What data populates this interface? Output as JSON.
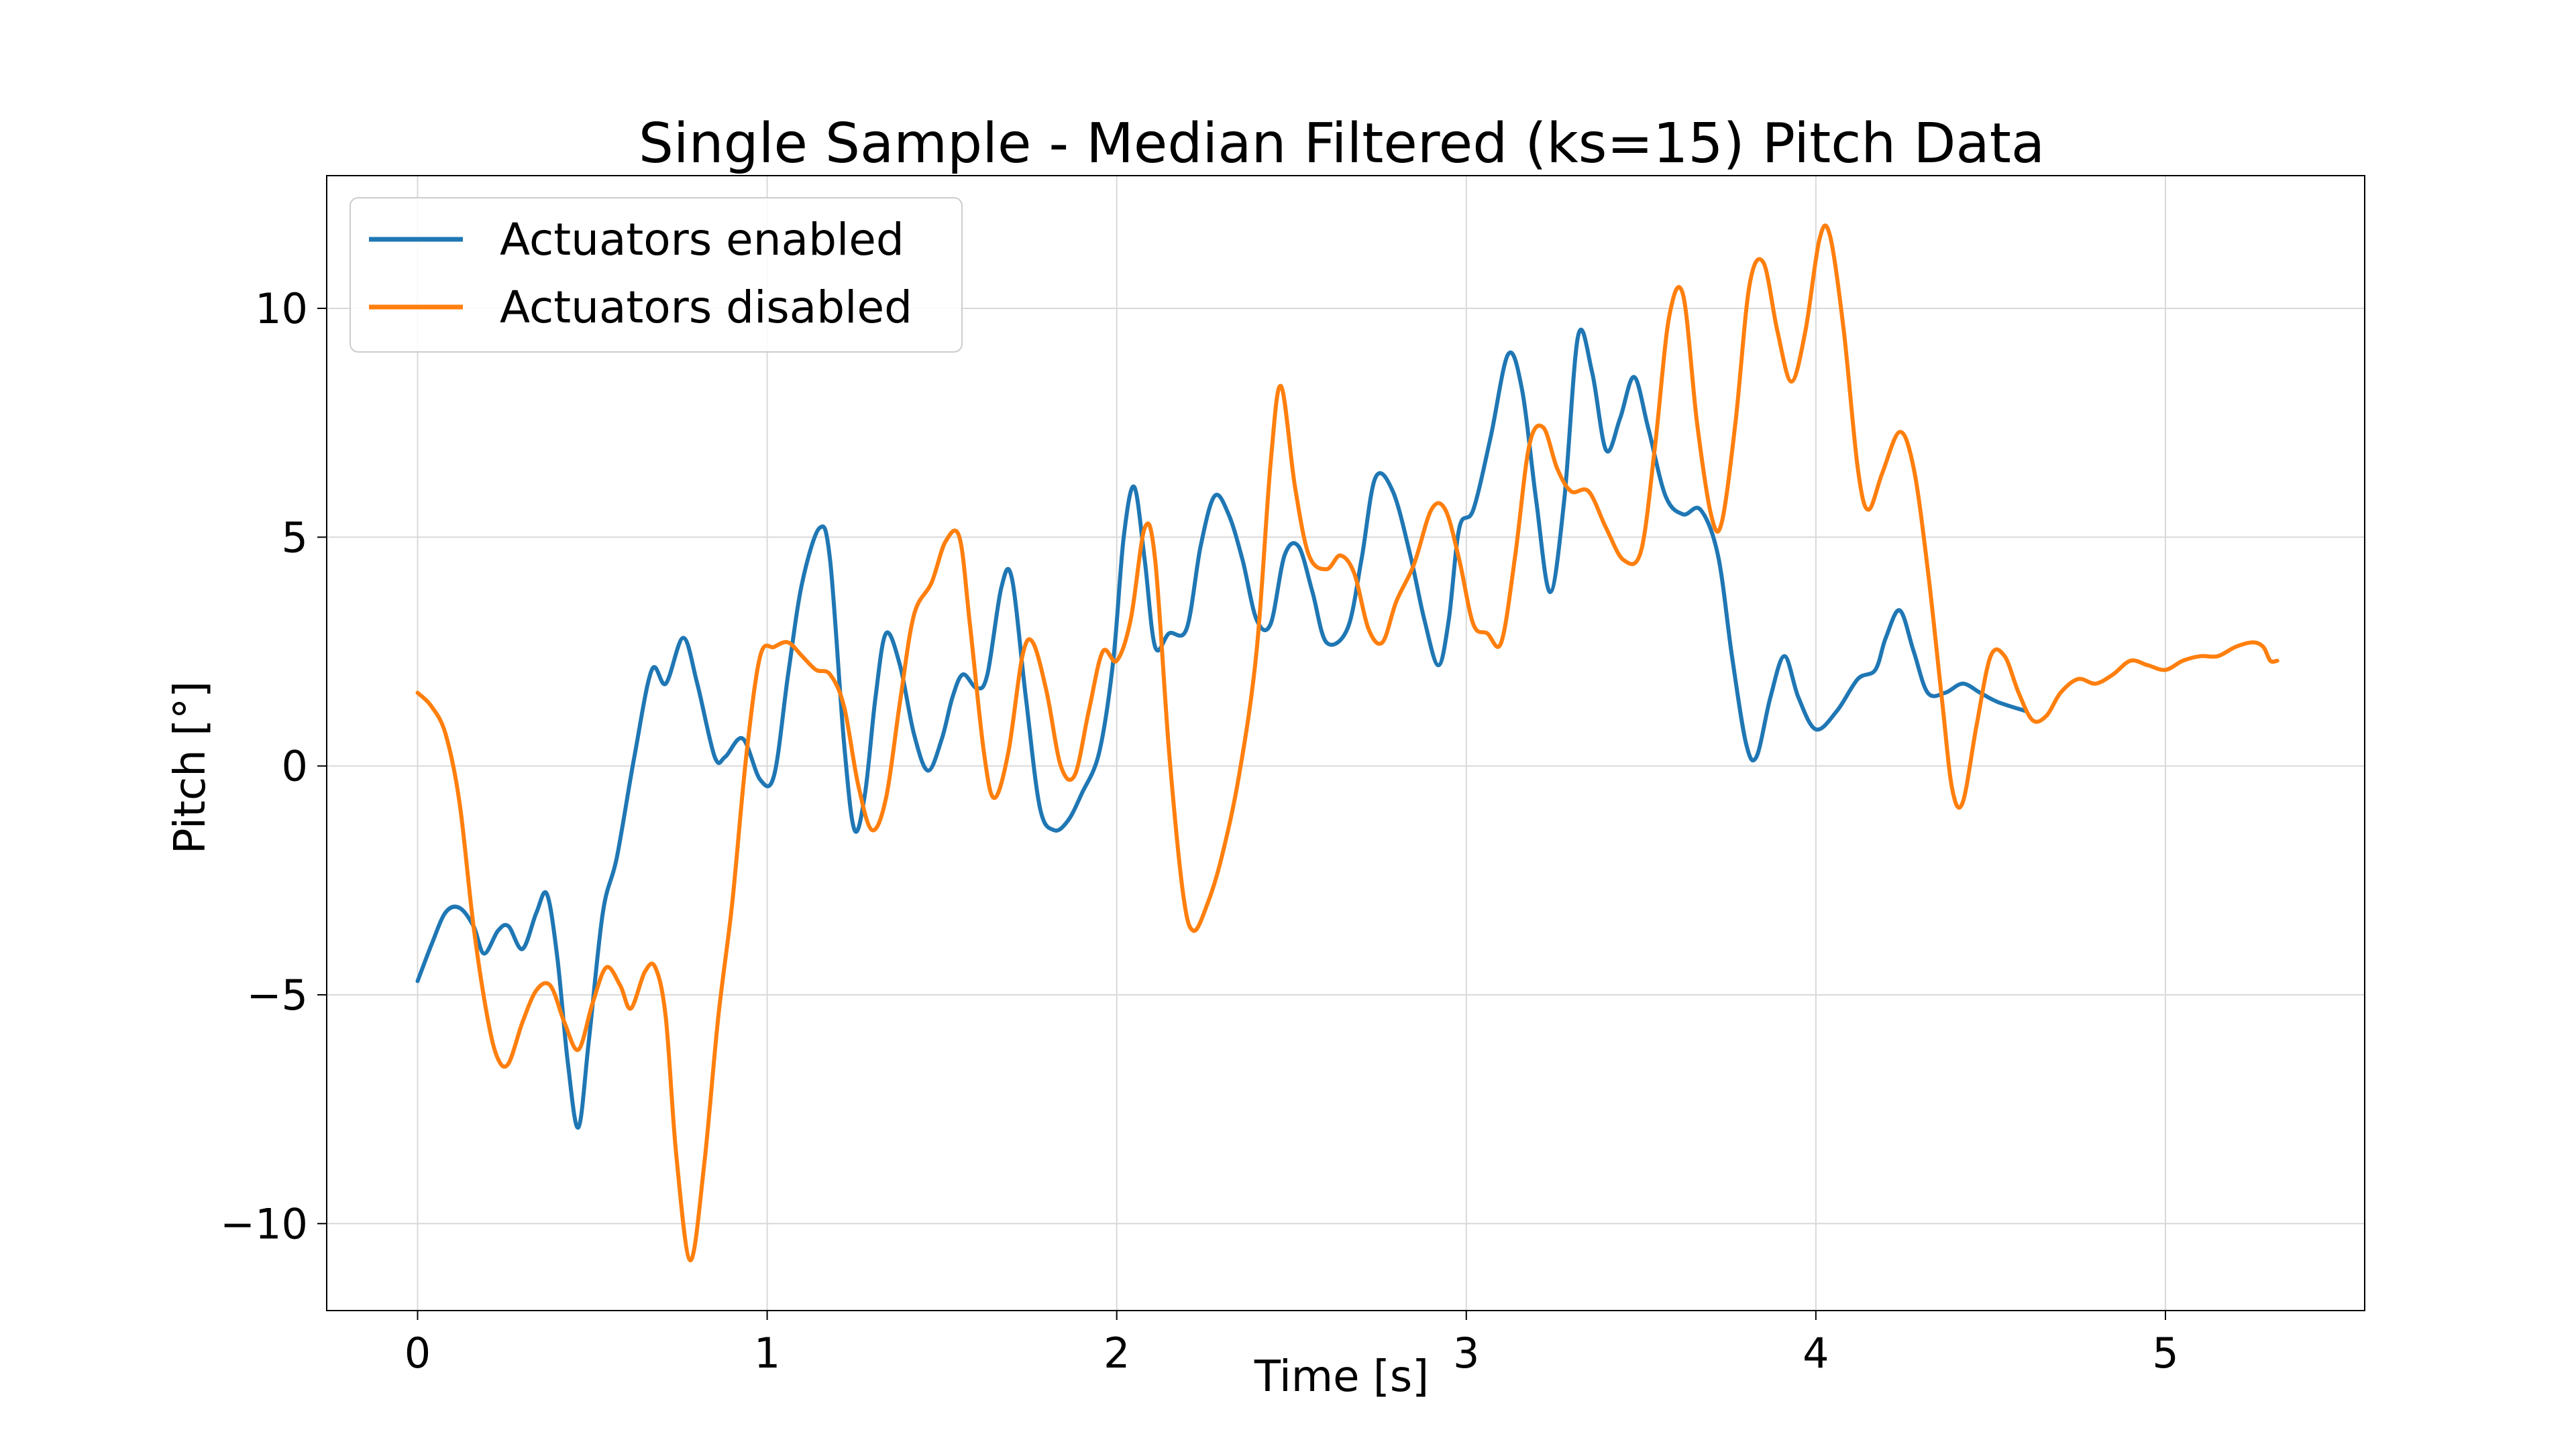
{
  "chart_data": {
    "type": "line",
    "title": "Single Sample - Median Filtered (ks=15) Pitch Data",
    "xlabel": "Time [s]",
    "ylabel": "Pitch [°]",
    "xlim": [
      -0.26,
      5.57
    ],
    "ylim": [
      -11.9,
      12.9
    ],
    "x_ticks": [
      0,
      1,
      2,
      3,
      4,
      5
    ],
    "x_tick_labels": [
      "0",
      "1",
      "2",
      "3",
      "4",
      "5"
    ],
    "y_ticks": [
      -10,
      -5,
      0,
      5,
      10
    ],
    "y_tick_labels": [
      "−10",
      "−5",
      "0",
      "5",
      "10"
    ],
    "grid": true,
    "legend_position": "top-left",
    "colors": {
      "enabled": "#1f77b4",
      "disabled": "#ff7f0e"
    },
    "series": [
      {
        "name": "Actuators enabled",
        "color": "#1f77b4",
        "points": [
          [
            0.0,
            -4.7
          ],
          [
            0.04,
            -3.9
          ],
          [
            0.08,
            -3.2
          ],
          [
            0.12,
            -3.1
          ],
          [
            0.16,
            -3.5
          ],
          [
            0.19,
            -4.1
          ],
          [
            0.23,
            -3.6
          ],
          [
            0.26,
            -3.5
          ],
          [
            0.3,
            -4.0
          ],
          [
            0.34,
            -3.2
          ],
          [
            0.37,
            -2.8
          ],
          [
            0.4,
            -4.2
          ],
          [
            0.43,
            -6.5
          ],
          [
            0.46,
            -7.9
          ],
          [
            0.49,
            -6.0
          ],
          [
            0.53,
            -3.2
          ],
          [
            0.57,
            -2.0
          ],
          [
            0.62,
            0.2
          ],
          [
            0.67,
            2.1
          ],
          [
            0.71,
            1.8
          ],
          [
            0.76,
            2.8
          ],
          [
            0.8,
            1.8
          ],
          [
            0.85,
            0.2
          ],
          [
            0.88,
            0.2
          ],
          [
            0.93,
            0.6
          ],
          [
            0.98,
            -0.3
          ],
          [
            1.02,
            -0.2
          ],
          [
            1.06,
            2.0
          ],
          [
            1.1,
            4.0
          ],
          [
            1.15,
            5.2
          ],
          [
            1.18,
            4.5
          ],
          [
            1.22,
            0.5
          ],
          [
            1.25,
            -1.4
          ],
          [
            1.28,
            -0.6
          ],
          [
            1.31,
            1.5
          ],
          [
            1.34,
            2.9
          ],
          [
            1.38,
            2.2
          ],
          [
            1.42,
            0.7
          ],
          [
            1.46,
            -0.1
          ],
          [
            1.5,
            0.6
          ],
          [
            1.53,
            1.5
          ],
          [
            1.56,
            2.0
          ],
          [
            1.6,
            1.7
          ],
          [
            1.63,
            2.0
          ],
          [
            1.67,
            3.9
          ],
          [
            1.7,
            4.1
          ],
          [
            1.74,
            1.5
          ],
          [
            1.78,
            -0.9
          ],
          [
            1.82,
            -1.4
          ],
          [
            1.86,
            -1.2
          ],
          [
            1.9,
            -0.6
          ],
          [
            1.95,
            0.3
          ],
          [
            1.99,
            2.3
          ],
          [
            2.02,
            5.0
          ],
          [
            2.05,
            6.1
          ],
          [
            2.08,
            4.5
          ],
          [
            2.11,
            2.6
          ],
          [
            2.15,
            2.9
          ],
          [
            2.2,
            3.0
          ],
          [
            2.24,
            4.8
          ],
          [
            2.28,
            5.9
          ],
          [
            2.32,
            5.5
          ],
          [
            2.36,
            4.5
          ],
          [
            2.4,
            3.2
          ],
          [
            2.44,
            3.1
          ],
          [
            2.48,
            4.6
          ],
          [
            2.52,
            4.8
          ],
          [
            2.56,
            3.8
          ],
          [
            2.6,
            2.7
          ],
          [
            2.66,
            3.0
          ],
          [
            2.7,
            4.5
          ],
          [
            2.74,
            6.3
          ],
          [
            2.79,
            6.0
          ],
          [
            2.84,
            4.6
          ],
          [
            2.88,
            3.2
          ],
          [
            2.92,
            2.2
          ],
          [
            2.95,
            3.2
          ],
          [
            2.98,
            5.2
          ],
          [
            3.02,
            5.6
          ],
          [
            3.07,
            7.2
          ],
          [
            3.12,
            9.0
          ],
          [
            3.16,
            8.2
          ],
          [
            3.2,
            5.8
          ],
          [
            3.24,
            3.8
          ],
          [
            3.28,
            5.8
          ],
          [
            3.32,
            9.4
          ],
          [
            3.36,
            8.6
          ],
          [
            3.4,
            6.9
          ],
          [
            3.44,
            7.6
          ],
          [
            3.48,
            8.5
          ],
          [
            3.52,
            7.4
          ],
          [
            3.57,
            5.9
          ],
          [
            3.62,
            5.5
          ],
          [
            3.67,
            5.6
          ],
          [
            3.72,
            4.6
          ],
          [
            3.76,
            2.4
          ],
          [
            3.8,
            0.5
          ],
          [
            3.83,
            0.2
          ],
          [
            3.87,
            1.5
          ],
          [
            3.91,
            2.4
          ],
          [
            3.95,
            1.5
          ],
          [
            4.0,
            0.8
          ],
          [
            4.06,
            1.2
          ],
          [
            4.12,
            1.9
          ],
          [
            4.17,
            2.1
          ],
          [
            4.2,
            2.8
          ],
          [
            4.24,
            3.4
          ],
          [
            4.28,
            2.5
          ],
          [
            4.32,
            1.6
          ],
          [
            4.37,
            1.6
          ],
          [
            4.42,
            1.8
          ],
          [
            4.47,
            1.6
          ],
          [
            4.52,
            1.4
          ],
          [
            4.6,
            1.2
          ]
        ]
      },
      {
        "name": "Actuators disabled",
        "color": "#ff7f0e",
        "points": [
          [
            0.0,
            1.6
          ],
          [
            0.04,
            1.3
          ],
          [
            0.08,
            0.7
          ],
          [
            0.12,
            -0.8
          ],
          [
            0.16,
            -3.5
          ],
          [
            0.2,
            -5.5
          ],
          [
            0.23,
            -6.4
          ],
          [
            0.26,
            -6.5
          ],
          [
            0.3,
            -5.6
          ],
          [
            0.34,
            -4.9
          ],
          [
            0.38,
            -4.8
          ],
          [
            0.42,
            -5.6
          ],
          [
            0.46,
            -6.2
          ],
          [
            0.5,
            -5.2
          ],
          [
            0.54,
            -4.4
          ],
          [
            0.58,
            -4.8
          ],
          [
            0.61,
            -5.3
          ],
          [
            0.65,
            -4.5
          ],
          [
            0.68,
            -4.4
          ],
          [
            0.71,
            -5.5
          ],
          [
            0.74,
            -8.5
          ],
          [
            0.78,
            -10.8
          ],
          [
            0.82,
            -8.7
          ],
          [
            0.86,
            -5.5
          ],
          [
            0.9,
            -3.0
          ],
          [
            0.94,
            0.2
          ],
          [
            0.98,
            2.4
          ],
          [
            1.02,
            2.6
          ],
          [
            1.06,
            2.7
          ],
          [
            1.1,
            2.4
          ],
          [
            1.14,
            2.1
          ],
          [
            1.18,
            2.0
          ],
          [
            1.22,
            1.3
          ],
          [
            1.26,
            -0.4
          ],
          [
            1.3,
            -1.4
          ],
          [
            1.34,
            -0.7
          ],
          [
            1.38,
            1.4
          ],
          [
            1.42,
            3.3
          ],
          [
            1.47,
            4.0
          ],
          [
            1.51,
            4.9
          ],
          [
            1.55,
            5.0
          ],
          [
            1.58,
            3.1
          ],
          [
            1.62,
            0.3
          ],
          [
            1.65,
            -0.7
          ],
          [
            1.69,
            0.3
          ],
          [
            1.73,
            2.4
          ],
          [
            1.76,
            2.7
          ],
          [
            1.8,
            1.6
          ],
          [
            1.84,
            0.0
          ],
          [
            1.88,
            -0.2
          ],
          [
            1.92,
            1.2
          ],
          [
            1.96,
            2.5
          ],
          [
            2.0,
            2.3
          ],
          [
            2.04,
            3.2
          ],
          [
            2.08,
            5.2
          ],
          [
            2.11,
            4.5
          ],
          [
            2.15,
            0.3
          ],
          [
            2.19,
            -2.8
          ],
          [
            2.22,
            -3.6
          ],
          [
            2.26,
            -3.0
          ],
          [
            2.3,
            -2.0
          ],
          [
            2.35,
            -0.2
          ],
          [
            2.4,
            2.5
          ],
          [
            2.44,
            6.6
          ],
          [
            2.47,
            8.3
          ],
          [
            2.51,
            6.1
          ],
          [
            2.55,
            4.6
          ],
          [
            2.6,
            4.3
          ],
          [
            2.64,
            4.6
          ],
          [
            2.68,
            4.2
          ],
          [
            2.72,
            3.0
          ],
          [
            2.76,
            2.7
          ],
          [
            2.8,
            3.6
          ],
          [
            2.85,
            4.4
          ],
          [
            2.9,
            5.6
          ],
          [
            2.94,
            5.6
          ],
          [
            2.98,
            4.5
          ],
          [
            3.02,
            3.1
          ],
          [
            3.06,
            2.9
          ],
          [
            3.1,
            2.7
          ],
          [
            3.14,
            4.6
          ],
          [
            3.18,
            7.0
          ],
          [
            3.22,
            7.4
          ],
          [
            3.26,
            6.5
          ],
          [
            3.3,
            6.0
          ],
          [
            3.35,
            6.0
          ],
          [
            3.4,
            5.2
          ],
          [
            3.45,
            4.5
          ],
          [
            3.5,
            4.7
          ],
          [
            3.54,
            7.0
          ],
          [
            3.58,
            9.8
          ],
          [
            3.62,
            10.3
          ],
          [
            3.66,
            7.5
          ],
          [
            3.7,
            5.5
          ],
          [
            3.73,
            5.3
          ],
          [
            3.77,
            7.5
          ],
          [
            3.81,
            10.5
          ],
          [
            3.85,
            11.0
          ],
          [
            3.89,
            9.5
          ],
          [
            3.93,
            8.4
          ],
          [
            3.97,
            9.5
          ],
          [
            4.01,
            11.5
          ],
          [
            4.04,
            11.6
          ],
          [
            4.08,
            9.5
          ],
          [
            4.12,
            6.5
          ],
          [
            4.15,
            5.6
          ],
          [
            4.19,
            6.4
          ],
          [
            4.24,
            7.3
          ],
          [
            4.28,
            6.5
          ],
          [
            4.32,
            4.3
          ],
          [
            4.36,
            1.5
          ],
          [
            4.39,
            -0.5
          ],
          [
            4.42,
            -0.8
          ],
          [
            4.46,
            0.9
          ],
          [
            4.5,
            2.4
          ],
          [
            4.54,
            2.4
          ],
          [
            4.58,
            1.6
          ],
          [
            4.62,
            1.0
          ],
          [
            4.66,
            1.1
          ],
          [
            4.7,
            1.6
          ],
          [
            4.75,
            1.9
          ],
          [
            4.8,
            1.8
          ],
          [
            4.85,
            2.0
          ],
          [
            4.9,
            2.3
          ],
          [
            4.95,
            2.2
          ],
          [
            5.0,
            2.1
          ],
          [
            5.05,
            2.3
          ],
          [
            5.1,
            2.4
          ],
          [
            5.15,
            2.4
          ],
          [
            5.2,
            2.6
          ],
          [
            5.25,
            2.7
          ],
          [
            5.28,
            2.6
          ],
          [
            5.3,
            2.3
          ],
          [
            5.32,
            2.3
          ]
        ]
      }
    ]
  }
}
